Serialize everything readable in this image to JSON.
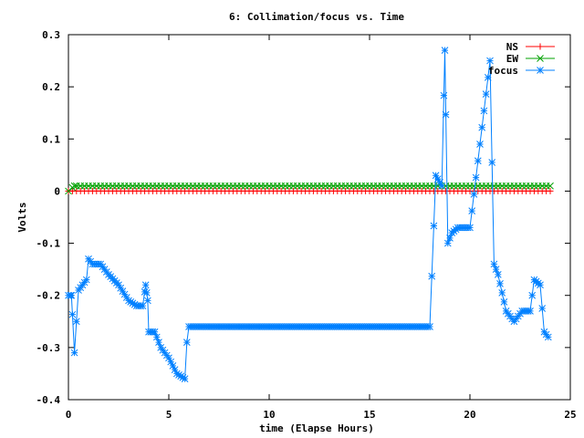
{
  "chart_data": {
    "type": "line",
    "title": "6: Collimation/focus vs. Time",
    "xlabel": "time (Elapse Hours)",
    "ylabel": "Volts",
    "xlim": [
      0,
      25
    ],
    "ylim": [
      -0.4,
      0.3
    ],
    "xticks": [
      0,
      5,
      10,
      15,
      20,
      25
    ],
    "yticks": [
      -0.4,
      -0.3,
      -0.2,
      -0.1,
      0,
      0.1,
      0.2,
      0.3
    ],
    "grid": false,
    "legend_position": "top-right",
    "series": [
      {
        "name": "NS",
        "color": "#ff0000",
        "marker": "plus",
        "x": [
          0,
          24
        ],
        "y": [
          0,
          0
        ],
        "sampling_interval_hours": 0.2
      },
      {
        "name": "EW",
        "color": "#00a000",
        "marker": "cross",
        "x": [
          0,
          0.3,
          24
        ],
        "y": [
          0,
          0.01,
          0.01
        ],
        "sampling_interval_hours": 0.2
      },
      {
        "name": "focus",
        "color": "#0080ff",
        "marker": "star",
        "x": [
          0.0,
          0.15,
          0.3,
          0.5,
          0.7,
          0.9,
          1.0,
          1.2,
          1.6,
          2.0,
          2.5,
          3.0,
          3.4,
          3.7,
          3.85,
          3.95,
          4.0,
          4.3,
          4.6,
          5.0,
          5.4,
          5.8,
          5.9,
          6.0,
          10.0,
          15.0,
          18.0,
          18.3,
          18.6,
          18.75,
          18.9,
          19.1,
          19.4,
          20.0,
          21.0,
          21.2,
          21.4,
          21.8,
          22.2,
          22.6,
          23.0,
          23.2,
          23.5,
          23.7,
          23.9
        ],
        "y": [
          -0.2,
          -0.2,
          -0.31,
          -0.19,
          -0.18,
          -0.17,
          -0.13,
          -0.14,
          -0.14,
          -0.16,
          -0.18,
          -0.21,
          -0.22,
          -0.22,
          -0.18,
          -0.21,
          -0.27,
          -0.27,
          -0.3,
          -0.32,
          -0.35,
          -0.36,
          -0.29,
          -0.26,
          -0.26,
          -0.26,
          -0.26,
          0.03,
          0.01,
          0.27,
          -0.1,
          -0.08,
          -0.07,
          -0.07,
          0.25,
          -0.14,
          -0.16,
          -0.23,
          -0.25,
          -0.23,
          -0.23,
          -0.17,
          -0.18,
          -0.27,
          -0.28
        ],
        "sampling_interval_hours": 0.1
      }
    ]
  }
}
